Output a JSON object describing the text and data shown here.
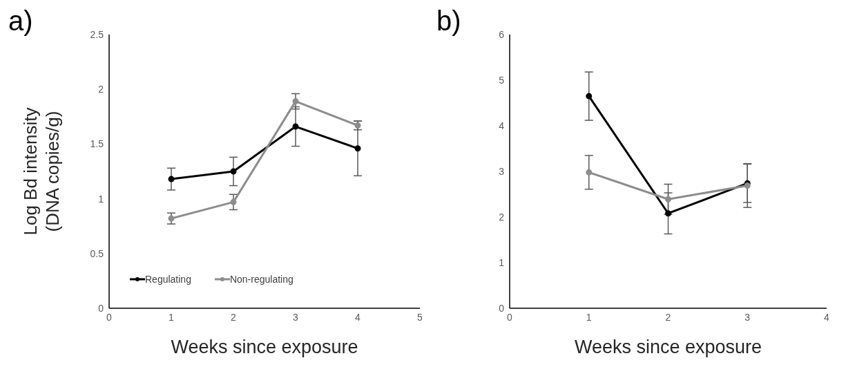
{
  "chart_data": [
    {
      "type": "line",
      "xlabel": "Weeks since exposure",
      "ylabel": "Log Bd intensity (DNA copies/g)",
      "annotations": [
        "a)"
      ],
      "x": [
        1,
        2,
        3,
        4
      ],
      "xlim": [
        0,
        5
      ],
      "xticks": [
        0,
        1,
        2,
        3,
        4,
        5
      ],
      "ylim": [
        0,
        2.5
      ],
      "yticks": [
        0,
        0.5,
        1,
        1.5,
        2,
        2.5
      ],
      "grid": false,
      "legend": "bottom",
      "marker": "circle",
      "line_style": "solid",
      "series": [
        {
          "name": "Regulating",
          "color": "#000000",
          "values": [
            1.18,
            1.25,
            1.66,
            1.46
          ],
          "errors": [
            0.1,
            0.13,
            0.18,
            0.25
          ]
        },
        {
          "name": "Non-regulating",
          "color": "#8c8c8c",
          "values": [
            0.82,
            0.97,
            1.89,
            1.67
          ],
          "errors": [
            0.05,
            0.07,
            0.07,
            0.04
          ]
        }
      ]
    },
    {
      "type": "line",
      "xlabel": "Weeks since exposure",
      "annotations": [
        "b)"
      ],
      "x": [
        1,
        2,
        3
      ],
      "xlim": [
        0,
        4
      ],
      "xticks": [
        0,
        1,
        2,
        3,
        4
      ],
      "ylim": [
        0,
        6
      ],
      "yticks": [
        0,
        1,
        2,
        3,
        4,
        5,
        6
      ],
      "grid": false,
      "legend": false,
      "marker": "circle",
      "line_style": "solid",
      "series": [
        {
          "color": "#000000",
          "values": [
            4.65,
            2.08,
            2.74
          ],
          "errors": [
            0.53,
            0.45,
            0.42
          ]
        },
        {
          "color": "#8c8c8c",
          "values": [
            2.98,
            2.39,
            2.69
          ],
          "errors": [
            0.37,
            0.33,
            0.48
          ]
        }
      ]
    }
  ]
}
